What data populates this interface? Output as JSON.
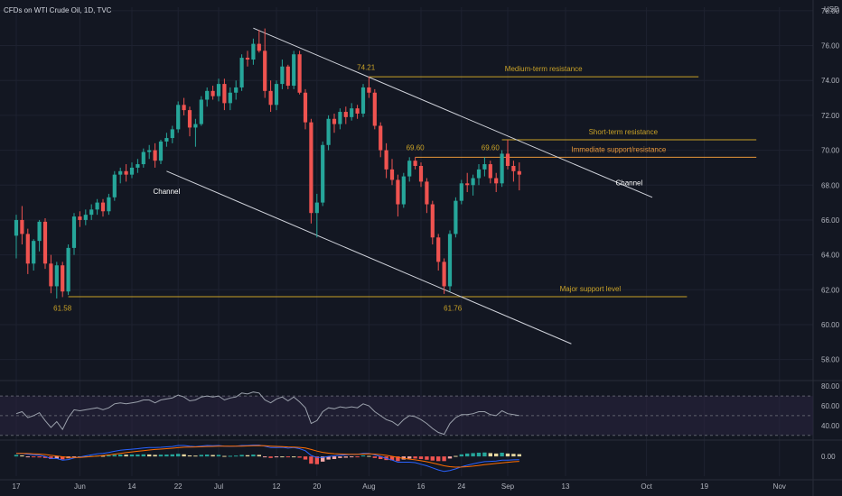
{
  "header": {
    "title": "CFDs on WTI Crude Oil, 1D, TVC",
    "currency": "USD"
  },
  "colors": {
    "background": "#131722",
    "up": "#26a69a",
    "down": "#ef5350",
    "level": "#c9a227",
    "level_orange": "#e8973a",
    "channel": "#d1d4dc",
    "rsi_line": "#9aa0ab",
    "rsi_band": "#2a2540",
    "macd_line": "#2962ff",
    "signal_line": "#ff6d00",
    "hist_up": "#26a69a",
    "hist_down": "#ef5350",
    "hist_light": "#e6d7a0",
    "grid": "#1e2230",
    "text": "#b2b5be"
  },
  "chart_data": {
    "type": "candlestick",
    "x_axis": {
      "labels": [
        "17",
        "Jun",
        "14",
        "22",
        "Jul",
        "12",
        "20",
        "Aug",
        "16",
        "24",
        "Sep",
        "13",
        "Oct",
        "19",
        "Nov"
      ],
      "label_day_index": [
        0,
        11,
        20,
        28,
        35,
        45,
        52,
        61,
        70,
        77,
        85,
        95,
        109,
        119,
        132
      ]
    },
    "y_axis": {
      "ticks": [
        "58.00",
        "60.00",
        "62.00",
        "64.00",
        "66.00",
        "68.00",
        "70.00",
        "72.00",
        "74.00",
        "76.00",
        "78.00"
      ],
      "ylim": [
        57,
        78.2
      ]
    },
    "candles": [
      {
        "o": 65.1,
        "h": 66.3,
        "l": 63.8,
        "c": 66.0
      },
      {
        "o": 66.0,
        "h": 66.8,
        "l": 64.6,
        "c": 65.2
      },
      {
        "o": 65.2,
        "h": 65.5,
        "l": 62.9,
        "c": 63.5
      },
      {
        "o": 63.5,
        "h": 64.9,
        "l": 63.1,
        "c": 64.8
      },
      {
        "o": 64.8,
        "h": 66.0,
        "l": 64.2,
        "c": 65.9
      },
      {
        "o": 65.9,
        "h": 66.1,
        "l": 63.2,
        "c": 63.5
      },
      {
        "o": 63.5,
        "h": 64.0,
        "l": 61.8,
        "c": 62.2
      },
      {
        "o": 62.2,
        "h": 63.6,
        "l": 61.5,
        "c": 63.4
      },
      {
        "o": 63.4,
        "h": 63.6,
        "l": 61.58,
        "c": 61.9
      },
      {
        "o": 61.9,
        "h": 64.6,
        "l": 61.7,
        "c": 64.4
      },
      {
        "o": 64.4,
        "h": 66.4,
        "l": 64.0,
        "c": 66.2
      },
      {
        "o": 66.2,
        "h": 66.5,
        "l": 65.6,
        "c": 66.0
      },
      {
        "o": 66.0,
        "h": 66.6,
        "l": 65.7,
        "c": 66.3
      },
      {
        "o": 66.3,
        "h": 66.9,
        "l": 66.0,
        "c": 66.6
      },
      {
        "o": 66.6,
        "h": 67.2,
        "l": 66.3,
        "c": 67.0
      },
      {
        "o": 67.0,
        "h": 67.2,
        "l": 66.2,
        "c": 66.5
      },
      {
        "o": 66.5,
        "h": 67.5,
        "l": 66.3,
        "c": 67.3
      },
      {
        "o": 67.3,
        "h": 68.8,
        "l": 67.1,
        "c": 68.6
      },
      {
        "o": 68.6,
        "h": 69.0,
        "l": 68.1,
        "c": 68.8
      },
      {
        "o": 68.8,
        "h": 69.2,
        "l": 68.2,
        "c": 68.6
      },
      {
        "o": 68.6,
        "h": 69.3,
        "l": 68.4,
        "c": 69.0
      },
      {
        "o": 69.0,
        "h": 69.5,
        "l": 68.7,
        "c": 69.2
      },
      {
        "o": 69.2,
        "h": 70.1,
        "l": 69.0,
        "c": 69.9
      },
      {
        "o": 69.9,
        "h": 70.3,
        "l": 69.5,
        "c": 70.0
      },
      {
        "o": 70.0,
        "h": 70.4,
        "l": 69.0,
        "c": 69.4
      },
      {
        "o": 69.4,
        "h": 70.6,
        "l": 69.2,
        "c": 70.5
      },
      {
        "o": 70.5,
        "h": 71.0,
        "l": 70.2,
        "c": 70.7
      },
      {
        "o": 70.7,
        "h": 71.4,
        "l": 70.4,
        "c": 71.2
      },
      {
        "o": 71.2,
        "h": 72.8,
        "l": 71.0,
        "c": 72.6
      },
      {
        "o": 72.6,
        "h": 73.0,
        "l": 72.0,
        "c": 72.3
      },
      {
        "o": 72.3,
        "h": 72.5,
        "l": 70.8,
        "c": 71.3
      },
      {
        "o": 71.3,
        "h": 71.8,
        "l": 70.2,
        "c": 71.5
      },
      {
        "o": 71.5,
        "h": 73.1,
        "l": 71.4,
        "c": 72.9
      },
      {
        "o": 72.9,
        "h": 73.6,
        "l": 72.5,
        "c": 73.4
      },
      {
        "o": 73.4,
        "h": 73.7,
        "l": 72.9,
        "c": 73.1
      },
      {
        "o": 73.1,
        "h": 74.1,
        "l": 72.8,
        "c": 73.8
      },
      {
        "o": 73.8,
        "h": 74.1,
        "l": 72.3,
        "c": 72.7
      },
      {
        "o": 72.7,
        "h": 73.6,
        "l": 72.3,
        "c": 73.3
      },
      {
        "o": 73.3,
        "h": 74.0,
        "l": 72.9,
        "c": 73.6
      },
      {
        "o": 73.6,
        "h": 75.5,
        "l": 73.4,
        "c": 75.3
      },
      {
        "o": 75.3,
        "h": 75.7,
        "l": 74.8,
        "c": 75.2
      },
      {
        "o": 75.2,
        "h": 76.4,
        "l": 74.9,
        "c": 76.1
      },
      {
        "o": 76.1,
        "h": 76.9,
        "l": 75.6,
        "c": 75.7
      },
      {
        "o": 75.7,
        "h": 76.98,
        "l": 73.0,
        "c": 73.4
      },
      {
        "o": 73.4,
        "h": 74.0,
        "l": 72.2,
        "c": 72.6
      },
      {
        "o": 72.6,
        "h": 74.0,
        "l": 72.3,
        "c": 73.8
      },
      {
        "o": 73.8,
        "h": 75.2,
        "l": 73.5,
        "c": 74.8
      },
      {
        "o": 74.8,
        "h": 74.9,
        "l": 73.5,
        "c": 73.7
      },
      {
        "o": 73.7,
        "h": 75.7,
        "l": 73.5,
        "c": 75.5
      },
      {
        "o": 75.5,
        "h": 75.7,
        "l": 73.2,
        "c": 73.3
      },
      {
        "o": 73.3,
        "h": 73.5,
        "l": 71.2,
        "c": 71.6
      },
      {
        "o": 71.6,
        "h": 71.8,
        "l": 65.8,
        "c": 66.4
      },
      {
        "o": 66.4,
        "h": 67.5,
        "l": 65.0,
        "c": 67.0
      },
      {
        "o": 67.0,
        "h": 70.5,
        "l": 66.8,
        "c": 70.3
      },
      {
        "o": 70.3,
        "h": 72.0,
        "l": 70.0,
        "c": 71.8
      },
      {
        "o": 71.8,
        "h": 72.1,
        "l": 71.0,
        "c": 71.5
      },
      {
        "o": 71.5,
        "h": 72.4,
        "l": 71.2,
        "c": 72.2
      },
      {
        "o": 72.2,
        "h": 72.5,
        "l": 71.5,
        "c": 71.9
      },
      {
        "o": 71.9,
        "h": 72.7,
        "l": 71.7,
        "c": 72.4
      },
      {
        "o": 72.4,
        "h": 72.6,
        "l": 71.8,
        "c": 72.1
      },
      {
        "o": 72.1,
        "h": 73.8,
        "l": 71.9,
        "c": 73.6
      },
      {
        "o": 73.6,
        "h": 74.21,
        "l": 73.0,
        "c": 73.3
      },
      {
        "o": 73.3,
        "h": 73.5,
        "l": 71.2,
        "c": 71.4
      },
      {
        "o": 71.4,
        "h": 71.6,
        "l": 69.6,
        "c": 70.0
      },
      {
        "o": 70.0,
        "h": 70.4,
        "l": 68.4,
        "c": 68.9
      },
      {
        "o": 68.9,
        "h": 69.5,
        "l": 68.0,
        "c": 68.3
      },
      {
        "o": 68.3,
        "h": 68.6,
        "l": 66.2,
        "c": 66.9
      },
      {
        "o": 66.9,
        "h": 68.7,
        "l": 66.7,
        "c": 68.5
      },
      {
        "o": 68.5,
        "h": 69.6,
        "l": 68.2,
        "c": 69.4
      },
      {
        "o": 69.4,
        "h": 69.6,
        "l": 68.9,
        "c": 69.1
      },
      {
        "o": 69.1,
        "h": 69.3,
        "l": 67.9,
        "c": 68.2
      },
      {
        "o": 68.2,
        "h": 68.4,
        "l": 66.4,
        "c": 66.9
      },
      {
        "o": 66.9,
        "h": 67.1,
        "l": 64.6,
        "c": 65.0
      },
      {
        "o": 65.0,
        "h": 65.2,
        "l": 63.1,
        "c": 63.6
      },
      {
        "o": 63.6,
        "h": 63.8,
        "l": 61.76,
        "c": 62.2
      },
      {
        "o": 62.2,
        "h": 65.4,
        "l": 61.9,
        "c": 65.2
      },
      {
        "o": 65.2,
        "h": 67.3,
        "l": 65.0,
        "c": 67.1
      },
      {
        "o": 67.1,
        "h": 68.3,
        "l": 66.9,
        "c": 68.1
      },
      {
        "o": 68.1,
        "h": 68.7,
        "l": 67.6,
        "c": 68.0
      },
      {
        "o": 68.0,
        "h": 68.6,
        "l": 67.4,
        "c": 68.4
      },
      {
        "o": 68.4,
        "h": 69.2,
        "l": 68.0,
        "c": 68.9
      },
      {
        "o": 68.9,
        "h": 69.6,
        "l": 68.5,
        "c": 69.2
      },
      {
        "o": 69.2,
        "h": 69.4,
        "l": 68.1,
        "c": 68.4
      },
      {
        "o": 68.4,
        "h": 68.7,
        "l": 67.6,
        "c": 68.1
      },
      {
        "o": 68.1,
        "h": 70.0,
        "l": 67.9,
        "c": 69.8
      },
      {
        "o": 69.8,
        "h": 70.6,
        "l": 68.9,
        "c": 69.1
      },
      {
        "o": 69.1,
        "h": 69.4,
        "l": 68.2,
        "c": 68.8
      },
      {
        "o": 68.8,
        "h": 69.3,
        "l": 67.7,
        "c": 68.6
      }
    ],
    "levels": [
      {
        "label": "Medium-term resistance",
        "price": 74.21,
        "start": 61,
        "end": 118
      },
      {
        "label": "Short-term resistance",
        "price": 70.6,
        "start": 84,
        "end": 128
      },
      {
        "label": "Immediate support/resistance",
        "price": 69.6,
        "start": 69,
        "end": 128
      },
      {
        "label": "Major support level",
        "price": 61.6,
        "start": 9,
        "end": 116
      }
    ],
    "price_labels": [
      {
        "text": "74.21",
        "day": 60.5,
        "price": 74.5
      },
      {
        "text": "69.60",
        "day": 69,
        "price": 69.9
      },
      {
        "text": "69.60",
        "day": 82,
        "price": 69.9
      },
      {
        "text": "61.58",
        "day": 8,
        "price": 60.7
      },
      {
        "text": "61.76",
        "day": 75.5,
        "price": 60.7
      }
    ],
    "channel_lines": [
      {
        "x1": 41,
        "y1": 77.0,
        "x2": 110,
        "y2": 67.3
      },
      {
        "x1": 26,
        "y1": 68.8,
        "x2": 96,
        "y2": 58.9
      }
    ],
    "channel_labels": [
      {
        "text": "Channel",
        "day": 26,
        "price": 67.5
      },
      {
        "text": "Channel",
        "day": 106,
        "price": 68.0
      }
    ],
    "rsi": {
      "ticks": [
        "40.00",
        "60.00",
        "80.00"
      ],
      "ylim": [
        27,
        82
      ],
      "upper": 70,
      "middle": 50,
      "lower": 30,
      "values": [
        52,
        54,
        48,
        50,
        53,
        45,
        38,
        44,
        36,
        48,
        56,
        55,
        56,
        57,
        58,
        56,
        58,
        62,
        63,
        62,
        63,
        64,
        66,
        66,
        63,
        66,
        67,
        68,
        71,
        69,
        65,
        66,
        69,
        70,
        69,
        70,
        66,
        68,
        69,
        73,
        72,
        74,
        73,
        66,
        63,
        67,
        69,
        65,
        69,
        64,
        58,
        42,
        45,
        54,
        58,
        57,
        59,
        58,
        59,
        58,
        62,
        60,
        54,
        50,
        46,
        44,
        40,
        46,
        50,
        49,
        46,
        42,
        37,
        33,
        31,
        42,
        48,
        51,
        51,
        52,
        54,
        54,
        51,
        50,
        55,
        52,
        51,
        50
      ]
    },
    "macd": {
      "ticks": [
        "0.00"
      ],
      "ylim": [
        -1.9,
        1.4
      ],
      "histogram": [
        0.15,
        0.1,
        -0.05,
        -0.08,
        -0.1,
        -0.15,
        -0.25,
        -0.2,
        -0.28,
        -0.18,
        -0.05,
        0.0,
        0.02,
        0.05,
        0.08,
        0.06,
        0.1,
        0.15,
        0.18,
        0.17,
        0.18,
        0.18,
        0.2,
        0.19,
        0.15,
        0.17,
        0.18,
        0.2,
        0.25,
        0.2,
        0.1,
        0.08,
        0.15,
        0.18,
        0.14,
        0.15,
        0.05,
        0.06,
        0.08,
        0.15,
        0.12,
        0.18,
        0.15,
        -0.05,
        -0.15,
        -0.08,
        0.0,
        -0.08,
        0.0,
        -0.12,
        -0.3,
        -0.7,
        -0.75,
        -0.5,
        -0.3,
        -0.25,
        -0.15,
        -0.12,
        -0.05,
        -0.06,
        0.1,
        0.05,
        -0.15,
        -0.25,
        -0.35,
        -0.38,
        -0.45,
        -0.3,
        -0.2,
        -0.2,
        -0.25,
        -0.32,
        -0.4,
        -0.45,
        -0.45,
        -0.2,
        0.05,
        0.2,
        0.28,
        0.32,
        0.36,
        0.38,
        0.32,
        0.28,
        0.36,
        0.28,
        0.25,
        0.22
      ],
      "macd_line": [
        0.3,
        0.3,
        0.2,
        0.15,
        0.12,
        0.0,
        -0.2,
        -0.2,
        -0.35,
        -0.3,
        -0.15,
        -0.05,
        0.05,
        0.15,
        0.25,
        0.3,
        0.38,
        0.5,
        0.6,
        0.65,
        0.7,
        0.75,
        0.82,
        0.86,
        0.85,
        0.88,
        0.92,
        0.96,
        1.05,
        1.05,
        0.98,
        0.95,
        1.0,
        1.05,
        1.03,
        1.05,
        0.98,
        0.97,
        0.98,
        1.05,
        1.05,
        1.1,
        1.1,
        0.98,
        0.85,
        0.85,
        0.88,
        0.8,
        0.85,
        0.75,
        0.55,
        0.1,
        -0.1,
        -0.1,
        0.0,
        0.05,
        0.12,
        0.15,
        0.2,
        0.2,
        0.3,
        0.3,
        0.15,
        0.0,
        -0.2,
        -0.35,
        -0.55,
        -0.55,
        -0.55,
        -0.6,
        -0.75,
        -0.9,
        -1.1,
        -1.3,
        -1.45,
        -1.35,
        -1.2,
        -1.0,
        -0.85,
        -0.72,
        -0.6,
        -0.5,
        -0.48,
        -0.45,
        -0.35,
        -0.35,
        -0.33,
        -0.32
      ]
    }
  }
}
